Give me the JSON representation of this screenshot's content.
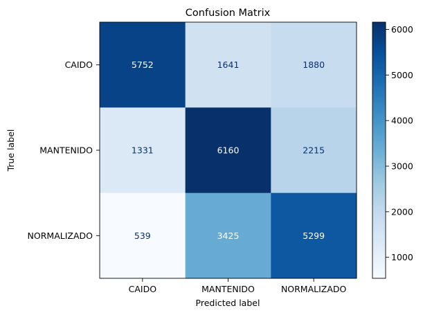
{
  "chart_data": {
    "type": "heatmap",
    "title": "Confusion Matrix",
    "xlabel": "Predicted label",
    "ylabel": "True label",
    "x_categories": [
      "CAIDO",
      "MANTENIDO",
      "NORMALIZADO"
    ],
    "y_categories": [
      "CAIDO",
      "MANTENIDO",
      "NORMALIZADO"
    ],
    "values": [
      [
        5752,
        1641,
        1880
      ],
      [
        1331,
        6160,
        2215
      ],
      [
        539,
        3425,
        5299
      ]
    ],
    "colormap": "Blues",
    "color_range": [
      539,
      6160
    ],
    "colorbar_ticks": [
      1000,
      2000,
      3000,
      4000,
      5000,
      6000
    ]
  }
}
